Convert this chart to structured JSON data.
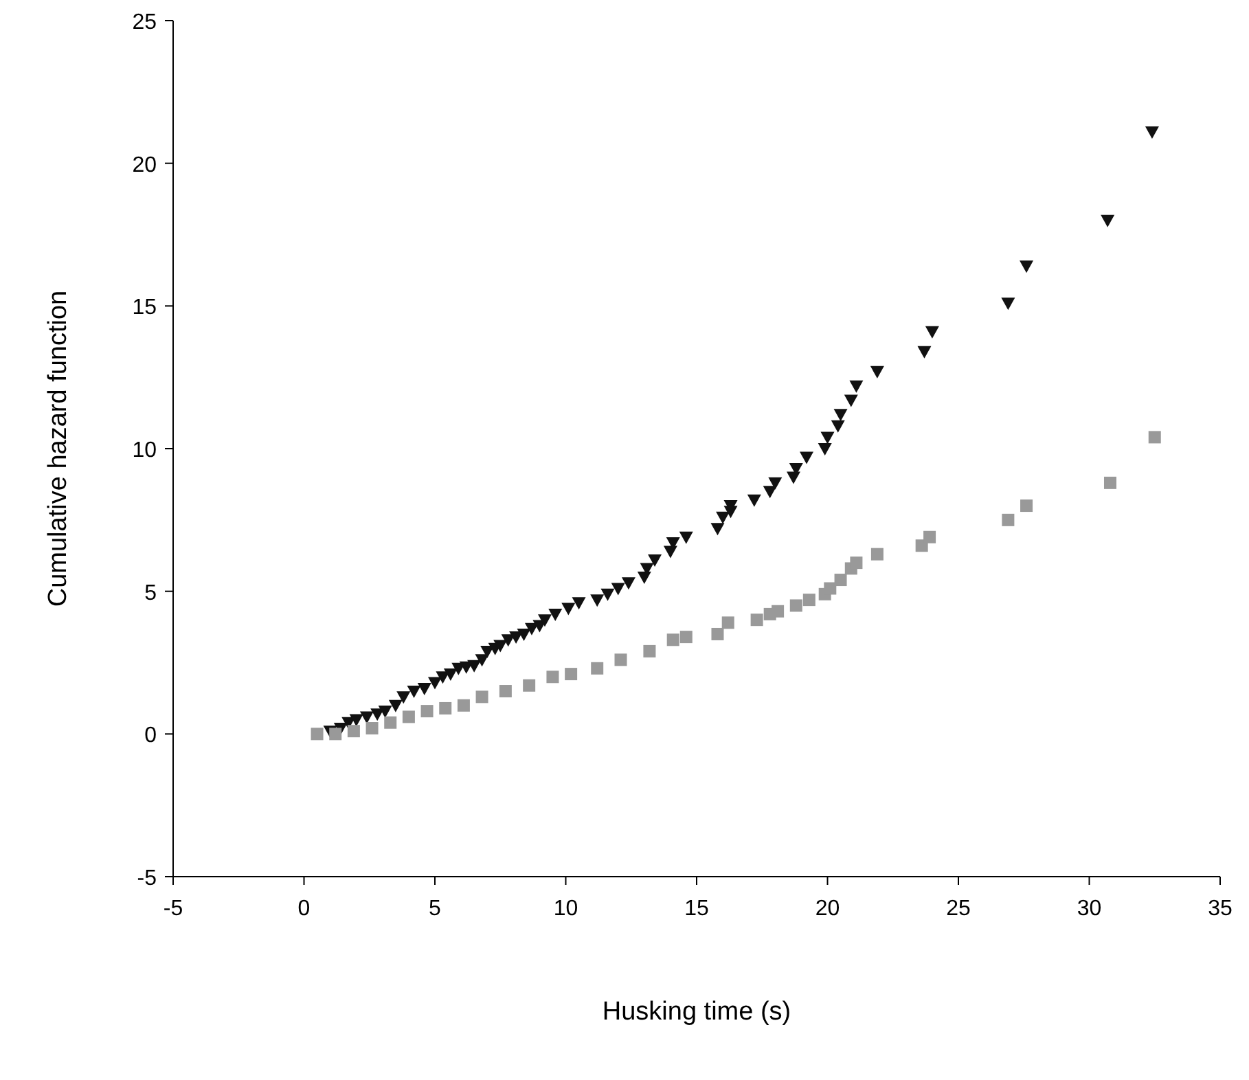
{
  "chart_data": {
    "type": "scatter",
    "xlabel": "Husking time (s)",
    "ylabel": "Cumulative hazard function",
    "xlim": [
      -5,
      35
    ],
    "ylim": [
      -5,
      25
    ],
    "xticks": [
      -5,
      0,
      5,
      10,
      15,
      20,
      25,
      30,
      35
    ],
    "yticks": [
      -5,
      0,
      5,
      10,
      15,
      20,
      25
    ],
    "grid": false,
    "series": [
      {
        "color": "#111111",
        "marker": "triangle",
        "x": [
          1.0,
          1.4,
          1.7,
          2.0,
          2.4,
          2.8,
          3.1,
          3.5,
          3.8,
          4.2,
          4.6,
          5.0,
          5.3,
          5.6,
          5.9,
          6.2,
          6.5,
          6.8,
          7.0,
          7.3,
          7.5,
          7.8,
          8.1,
          8.4,
          8.7,
          9.0,
          9.2,
          9.6,
          10.1,
          10.5,
          11.2,
          11.6,
          12.0,
          12.4,
          13.0,
          13.1,
          13.4,
          14.0,
          14.1,
          14.6,
          15.8,
          16.0,
          16.3,
          16.3,
          17.2,
          17.8,
          18.0,
          18.7,
          18.8,
          19.2,
          19.9,
          20.0,
          20.4,
          20.5,
          20.9,
          21.1,
          21.9,
          23.7,
          24.0,
          26.9,
          27.6,
          30.7,
          32.4
        ],
        "values": [
          0.1,
          0.2,
          0.4,
          0.5,
          0.6,
          0.7,
          0.8,
          1.0,
          1.3,
          1.5,
          1.6,
          1.8,
          2.0,
          2.1,
          2.3,
          2.35,
          2.4,
          2.6,
          2.9,
          3.0,
          3.1,
          3.3,
          3.4,
          3.5,
          3.7,
          3.8,
          4.0,
          4.2,
          4.4,
          4.6,
          4.7,
          4.9,
          5.1,
          5.3,
          5.5,
          5.8,
          6.1,
          6.4,
          6.7,
          6.9,
          7.2,
          7.6,
          7.8,
          8.0,
          8.2,
          8.5,
          8.8,
          9.0,
          9.3,
          9.7,
          10.0,
          10.4,
          10.8,
          11.2,
          11.7,
          12.2,
          12.7,
          13.4,
          14.1,
          15.1,
          16.4,
          18.0,
          21.1
        ]
      },
      {
        "color": "#999999",
        "marker": "square",
        "x": [
          0.5,
          1.2,
          1.9,
          2.6,
          3.3,
          4.0,
          4.7,
          5.4,
          6.1,
          6.8,
          7.7,
          8.6,
          9.5,
          10.2,
          11.2,
          12.1,
          13.2,
          14.1,
          14.6,
          15.8,
          16.2,
          17.3,
          17.8,
          18.1,
          18.8,
          19.3,
          19.9,
          20.1,
          20.5,
          20.9,
          21.1,
          21.9,
          23.6,
          23.9,
          26.9,
          27.6,
          30.8,
          32.5
        ],
        "values": [
          0,
          0,
          0.1,
          0.2,
          0.4,
          0.6,
          0.8,
          0.9,
          1.0,
          1.3,
          1.5,
          1.7,
          2.0,
          2.1,
          2.3,
          2.6,
          2.9,
          3.3,
          3.4,
          3.5,
          3.9,
          4.0,
          4.2,
          4.3,
          4.5,
          4.7,
          4.9,
          5.1,
          5.4,
          5.8,
          6.0,
          6.3,
          6.6,
          6.9,
          7.5,
          8.0,
          8.8,
          10.4
        ]
      }
    ]
  }
}
